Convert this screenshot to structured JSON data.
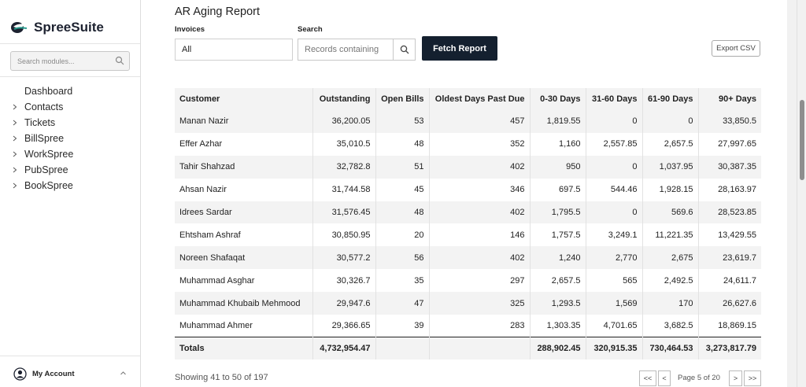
{
  "app": {
    "brand": "SpreeSuite",
    "accent": "#14202f"
  },
  "sidebar": {
    "search_placeholder": "Search modules...",
    "items": [
      {
        "label": "Dashboard",
        "icon": "none"
      },
      {
        "label": "Contacts",
        "icon": "chevron-right-icon"
      },
      {
        "label": "Tickets",
        "icon": "chevron-right-icon"
      },
      {
        "label": "BillSpree",
        "icon": "chevron-right-icon"
      },
      {
        "label": "WorkSpree",
        "icon": "chevron-right-icon"
      },
      {
        "label": "PubSpree",
        "icon": "chevron-right-icon"
      },
      {
        "label": "BookSpree",
        "icon": "chevron-right-icon"
      }
    ],
    "account_label": "My Account"
  },
  "report": {
    "title": "AR Aging Report",
    "invoices_label": "Invoices",
    "invoices_value": "All",
    "search_label": "Search",
    "search_placeholder": "Records containing",
    "fetch_label": "Fetch Report",
    "export_label": "Export CSV",
    "columns": [
      "Customer",
      "Outstanding",
      "Open Bills",
      "Oldest Days Past Due",
      "0-30 Days",
      "31-60 Days",
      "61-90 Days",
      "90+ Days"
    ],
    "rows": [
      [
        "Manan Nazir",
        "36,200.05",
        "53",
        "457",
        "1,819.55",
        "0",
        "0",
        "33,850.5"
      ],
      [
        "Effer Azhar",
        "35,010.5",
        "48",
        "352",
        "1,160",
        "2,557.85",
        "2,657.5",
        "27,997.65"
      ],
      [
        "Tahir Shahzad",
        "32,782.8",
        "51",
        "402",
        "950",
        "0",
        "1,037.95",
        "30,387.35"
      ],
      [
        "Ahsan Nazir",
        "31,744.58",
        "45",
        "346",
        "697.5",
        "544.46",
        "1,928.15",
        "28,163.97"
      ],
      [
        "Idrees Sardar",
        "31,576.45",
        "48",
        "402",
        "1,795.5",
        "0",
        "569.6",
        "28,523.85"
      ],
      [
        "Ehtsham Ashraf",
        "30,850.95",
        "20",
        "146",
        "1,757.5",
        "3,249.1",
        "11,221.35",
        "13,429.55"
      ],
      [
        "Noreen Shafaqat",
        "30,577.2",
        "56",
        "402",
        "1,240",
        "2,770",
        "2,675",
        "23,619.7"
      ],
      [
        "Muhammad Asghar",
        "30,326.7",
        "35",
        "297",
        "2,657.5",
        "565",
        "2,492.5",
        "24,611.7"
      ],
      [
        "Muhammad Khubaib Mehmood",
        "29,947.6",
        "47",
        "325",
        "1,293.5",
        "1,569",
        "170",
        "26,627.6"
      ],
      [
        "Muhammad Ahmer",
        "29,366.65",
        "39",
        "283",
        "1,303.35",
        "4,701.65",
        "3,682.5",
        "18,869.15"
      ]
    ],
    "totals": [
      "Totals",
      "4,732,954.47",
      "",
      "",
      "288,902.45",
      "320,915.35",
      "730,464.53",
      "3,273,817.79"
    ],
    "showing": "Showing 41 to 50 of 197",
    "pager": {
      "first": "<<",
      "prev": "<",
      "page_info": "Page 5 of 20",
      "next": ">",
      "last": ">>"
    }
  }
}
